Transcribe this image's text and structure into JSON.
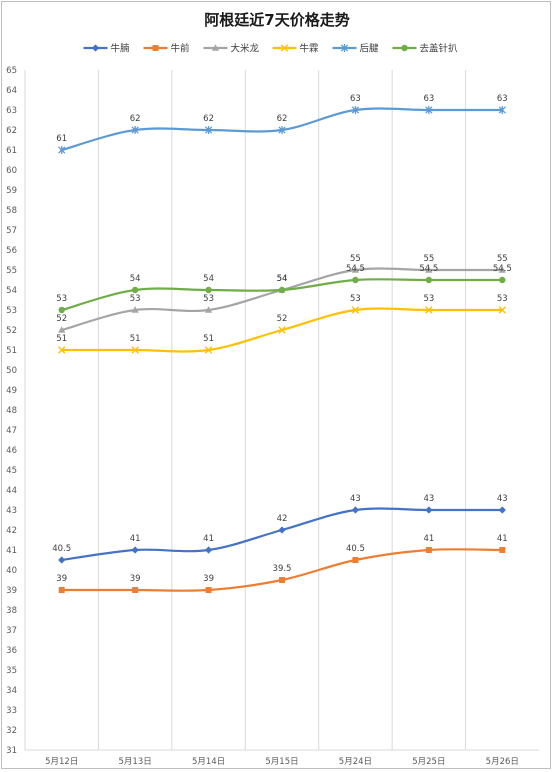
{
  "chart_data": {
    "type": "line",
    "title": "阿根廷近7天价格走势",
    "categories": [
      "5月12日",
      "5月13日",
      "5月14日",
      "5月15日",
      "5月24日",
      "5月25日",
      "5月26日"
    ],
    "ylim": [
      31,
      65
    ],
    "ytick_step": 1,
    "grid": "vertical",
    "legend_position": "top",
    "series": [
      {
        "name": "牛腩",
        "color": "#4472c4",
        "marker": "diamond",
        "values": [
          40.5,
          41,
          41,
          42,
          43,
          43,
          43
        ]
      },
      {
        "name": "牛前",
        "color": "#ed7d31",
        "marker": "square",
        "values": [
          39,
          39,
          39,
          39.5,
          40.5,
          41,
          41
        ]
      },
      {
        "name": "大米龙",
        "color": "#a5a5a5",
        "marker": "triangle",
        "values": [
          52,
          53,
          53,
          54,
          55,
          55,
          55
        ]
      },
      {
        "name": "牛霖",
        "color": "#ffc000",
        "marker": "x",
        "values": [
          51,
          51,
          51,
          52,
          53,
          53,
          53
        ]
      },
      {
        "name": "后腱",
        "color": "#5b9bd5",
        "marker": "star",
        "values": [
          61,
          62,
          62,
          62,
          63,
          63,
          63
        ]
      },
      {
        "name": "去盖针扒",
        "color": "#70ad47",
        "marker": "circle",
        "values": [
          53,
          54,
          54,
          54,
          54.5,
          54.5,
          54.5
        ]
      }
    ]
  }
}
